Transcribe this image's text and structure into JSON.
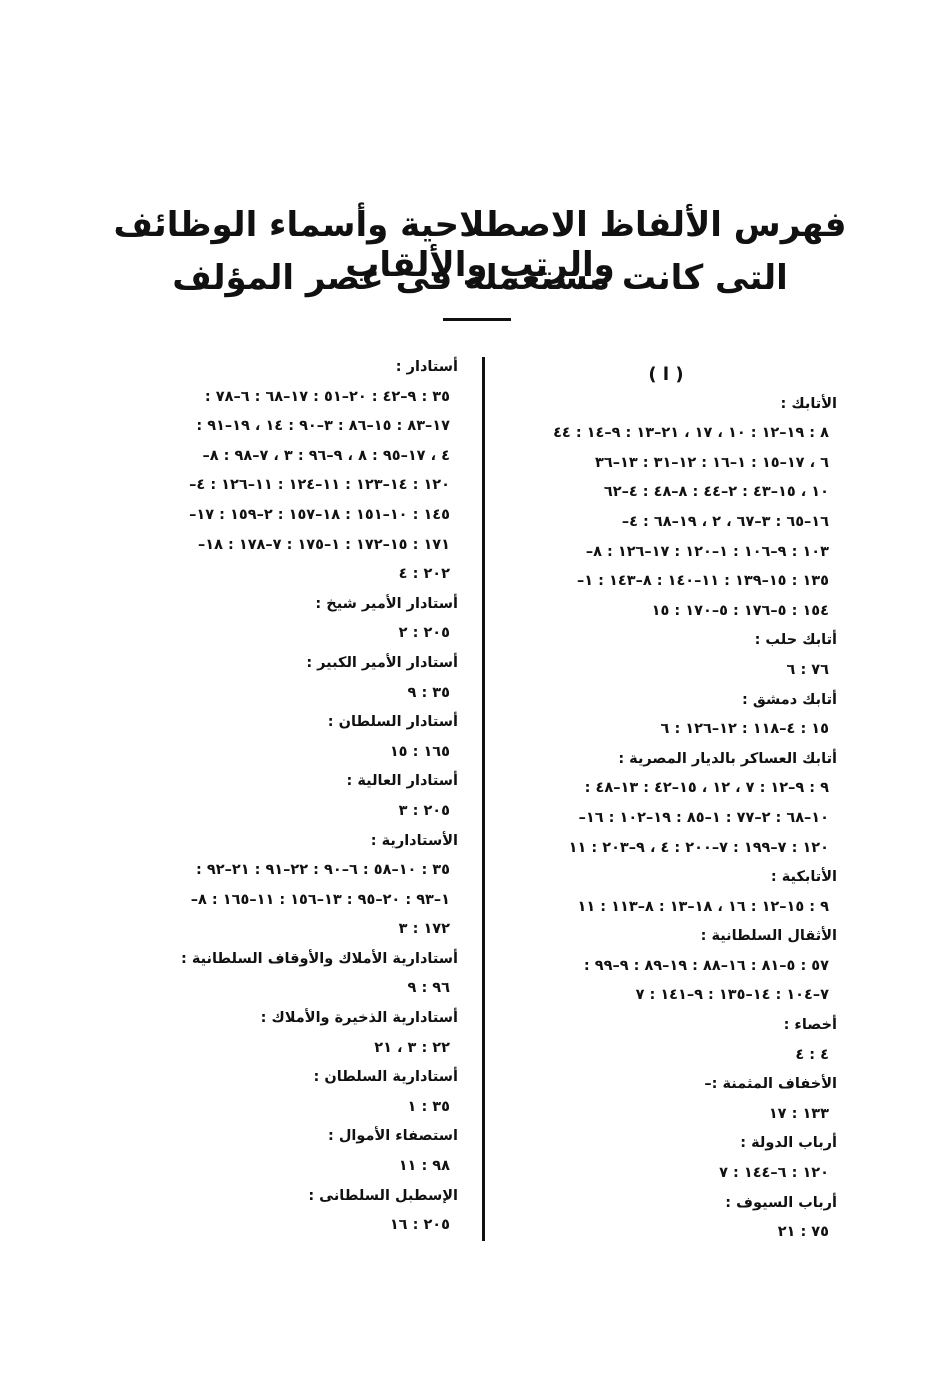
{
  "header": {
    "title_lines": [
      "فهرس الألفاظ الاصطلاحية وأسماء الوظائف والرتب والألقاب",
      "التى كانت مستعملة فى عصر المؤلف"
    ]
  },
  "right_column": {
    "heading": "( ا )",
    "entries": [
      {
        "term": "الأتابك :",
        "refs": [
          "٨ : ١٩–١٢ : ١٠ ، ١٧ ، ٢١–١٣ : ٩–١٤ : ٤٤",
          "٦ ، ١٧–١٥ : ١–١٦ : ١٢–٣١ : ١٣–٣٦",
          "١٠ ، ١٥–٤٣ : ٢–٤٤ : ٨–٤٨ : ٤–٦٢",
          "١٦–٦٥ : ٣–٦٧ ، ٢ ، ١٩–٦٨ : ٤–",
          "١٠٣ : ٩–١٠٦ : ١–١٢٠ : ١٧–١٢٦ : ٨–",
          "١٣٥ : ١٥–١٣٩ : ١١–١٤٠ : ٨–١٤٣ : ١–",
          "١٥٤ : ٥–١٧٦ : ٥–١٧٠ : ١٥"
        ]
      },
      {
        "term": "أتابك حلب :",
        "refs": [
          "٧٦ : ٦"
        ]
      },
      {
        "term": "أتابك دمشق :",
        "refs": [
          "١٥ : ٤–١١٨ : ١٢–١٢٦ : ٦"
        ]
      },
      {
        "term": "أتابك العساكر بالديار المصرية :",
        "refs": [
          "٩ : ٩–١٢ : ٧ ، ١٢ ، ١٥–٤٢ : ١٣–٤٨ :",
          "١٠–٦٨ : ٢–٧٧ : ١–٨٥ : ١٩–١٠٢ : ١٦–",
          "١٢٠ : ٧–١٩٩ : ٧–٢٠٠ : ٤ ، ٩–٢٠٣ : ١١"
        ]
      },
      {
        "term": "الأتابكية :",
        "refs": [
          "٩ : ١٥–١٢ : ١٦ ، ١٨–١٣ : ٨–١١٣ : ١١"
        ]
      },
      {
        "term": "الأثقال السلطانية :",
        "refs": [
          "٥٧ : ٥–٨١ : ١٦–٨٨ : ١٩–٨٩ : ٩–٩٩ :",
          "٧–١٠٤ : ١٤–١٣٥ : ٩–١٤١ : ٧"
        ]
      },
      {
        "term": "أخصاء :",
        "refs": [
          "٤ : ٤"
        ]
      },
      {
        "term": "الأخفاف المثمنة :–",
        "refs": [
          "١٣٣ : ١٧"
        ]
      },
      {
        "term": "أرباب الدولة :",
        "refs": [
          "١٢٠ : ٦–١٤٤ : ٧"
        ]
      },
      {
        "term": "أرباب السيوف :",
        "refs": [
          "٧٥ : ٢١"
        ]
      }
    ]
  },
  "left_column": {
    "entries": [
      {
        "term": "أستادار :",
        "refs": [
          "٣٥ : ٩–٤٢ : ٢٠–٥١ : ١٧–٦٨ : ٦–٧٨ :",
          "١٧–٨٣ : ١٥–٨٦ : ٣–٩٠ : ١٤ ، ١٩–٩١ :",
          "٤ ، ١٧–٩٥ : ٨ ، ٩–٩٦ : ٣ ، ٧–٩٨ : ٨–",
          "١٢٠ : ١٤–١٢٣ : ١١–١٢٤ : ١١–١٢٦ : ٤–",
          "١٤٥ : ١٠–١٥١ : ١٨–١٥٧ : ٢–١٥٩ : ١٧–",
          "١٧١ : ١٥–١٧٢ : ١–١٧٥ : ٧–١٧٨ : ١٨–",
          "٢٠٢ : ٤"
        ]
      },
      {
        "term": "أستادار الأمير شيخ :",
        "refs": [
          "٢٠٥ : ٢"
        ]
      },
      {
        "term": "أستادار الأمير الكبير :",
        "refs": [
          "٣٥ : ٩"
        ]
      },
      {
        "term": "أستادار السلطان :",
        "refs": [
          "١٦٥ : ١٥"
        ]
      },
      {
        "term": "أستادار العالية :",
        "refs": [
          "٢٠٥ : ٣"
        ]
      },
      {
        "term": "الأستادارية :",
        "refs": [
          "٣٥ : ١٠–٥٨ : ٦–٩٠ : ٢٢–٩١ : ٢١–٩٢ :",
          "١–٩٣ : ٢٠–٩٥ : ١٣–١٥٦ : ١١–١٦٥ : ٨–",
          "١٧٢ : ٣"
        ]
      },
      {
        "term": "أستادارية الأملاك والأوقاف السلطانية :",
        "refs": [
          "٩٦ : ٩"
        ]
      },
      {
        "term": "أستادارية الذخيرة والأملاك :",
        "refs": [
          "٢٢ : ٣ ، ٢١"
        ]
      },
      {
        "term": "أستادارية السلطان :",
        "refs": [
          "٣٥ : ١"
        ]
      },
      {
        "term": "استصفاء الأموال :",
        "refs": [
          "٩٨ : ١١"
        ]
      },
      {
        "term": "الإسطبل السلطانى :",
        "refs": [
          "٢٠٥ : ١٦"
        ]
      }
    ]
  }
}
